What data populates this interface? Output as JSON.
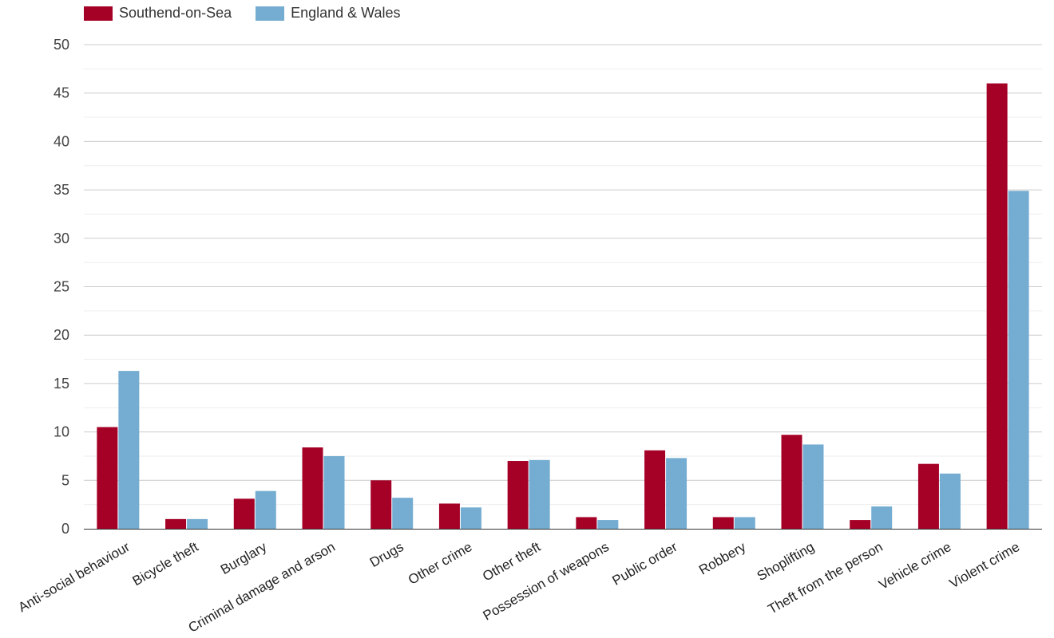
{
  "legend": {
    "series1": "Southend-on-Sea",
    "series2": "England & Wales"
  },
  "colors": {
    "series1": "#a50026",
    "series2": "#74add1",
    "grid_major": "#cccccc",
    "grid_minor": "#eeeeee",
    "axis": "#333333"
  },
  "chart_data": {
    "type": "bar",
    "categories": [
      "Anti-social behaviour",
      "Bicycle theft",
      "Burglary",
      "Criminal damage and arson",
      "Drugs",
      "Other crime",
      "Other theft",
      "Possession of weapons",
      "Public order",
      "Robbery",
      "Shoplifting",
      "Theft from the person",
      "Vehicle crime",
      "Violent crime"
    ],
    "series": [
      {
        "name": "Southend-on-Sea",
        "values": [
          10.5,
          1.0,
          3.1,
          8.4,
          5.0,
          2.6,
          7.0,
          1.2,
          8.1,
          1.2,
          9.7,
          0.9,
          6.7,
          46.0
        ]
      },
      {
        "name": "England & Wales",
        "values": [
          16.3,
          1.0,
          3.9,
          7.5,
          3.2,
          2.2,
          7.1,
          0.9,
          7.3,
          1.2,
          8.7,
          2.3,
          5.7,
          34.9
        ]
      }
    ],
    "ylim": [
      0,
      50
    ],
    "yticks": [
      0,
      5,
      10,
      15,
      20,
      25,
      30,
      35,
      40,
      45,
      50
    ],
    "grid": true,
    "legend_position": "top-left"
  }
}
